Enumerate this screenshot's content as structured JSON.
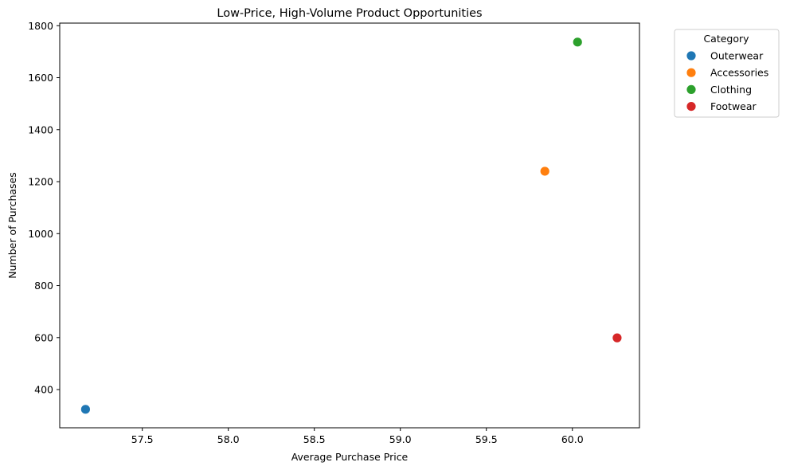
{
  "chart_data": {
    "type": "scatter",
    "title": "Low-Price, High-Volume Product Opportunities",
    "xlabel": "Average Purchase Price",
    "ylabel": "Number of Purchases",
    "xlim": [
      57.02,
      60.39
    ],
    "ylim": [
      253,
      1810
    ],
    "x_ticks": [
      57.5,
      58.0,
      58.5,
      59.0,
      59.5,
      60.0
    ],
    "x_tick_labels": [
      "57.5",
      "58.0",
      "58.5",
      "59.0",
      "59.5",
      "60.0"
    ],
    "y_ticks": [
      400,
      600,
      800,
      1000,
      1200,
      1400,
      1600,
      1800
    ],
    "y_tick_labels": [
      "400",
      "600",
      "800",
      "1000",
      "1200",
      "1400",
      "1600",
      "1800"
    ],
    "grid": false,
    "legend": {
      "title": "Category",
      "placement": "outside-top-right"
    },
    "series": [
      {
        "name": "Outerwear",
        "color": "#1f77b4",
        "points": [
          {
            "x": 57.17,
            "y": 324
          }
        ]
      },
      {
        "name": "Accessories",
        "color": "#ff7f0e",
        "points": [
          {
            "x": 59.84,
            "y": 1240
          }
        ]
      },
      {
        "name": "Clothing",
        "color": "#2ca02c",
        "points": [
          {
            "x": 60.03,
            "y": 1737
          }
        ]
      },
      {
        "name": "Footwear",
        "color": "#d62728",
        "points": [
          {
            "x": 60.26,
            "y": 599
          }
        ]
      }
    ]
  }
}
